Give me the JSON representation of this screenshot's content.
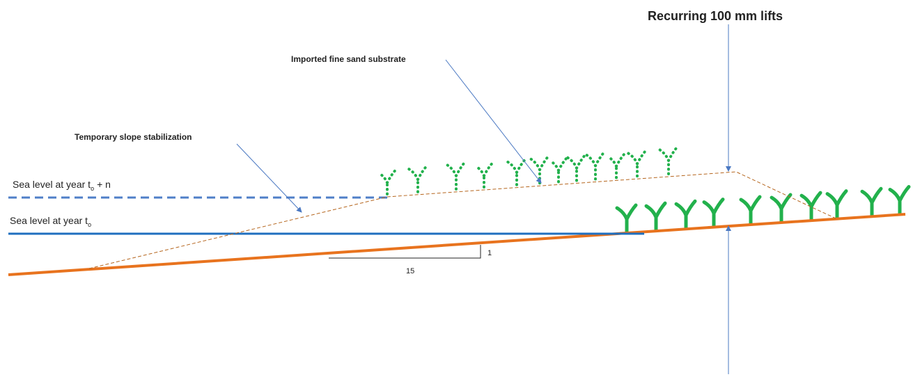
{
  "annotations": {
    "lifts": "Recurring 100 mm lifts",
    "substrate": "Imported fine sand substrate",
    "stabilization": "Temporary slope stabilization"
  },
  "sea_levels": {
    "future": {
      "label": "Sea level at year t",
      "subscript": "o",
      "suffix": "+ n"
    },
    "current": {
      "label": "Sea level at year t",
      "subscript": "o"
    }
  },
  "slope": {
    "rise": "1",
    "run": "15"
  }
}
